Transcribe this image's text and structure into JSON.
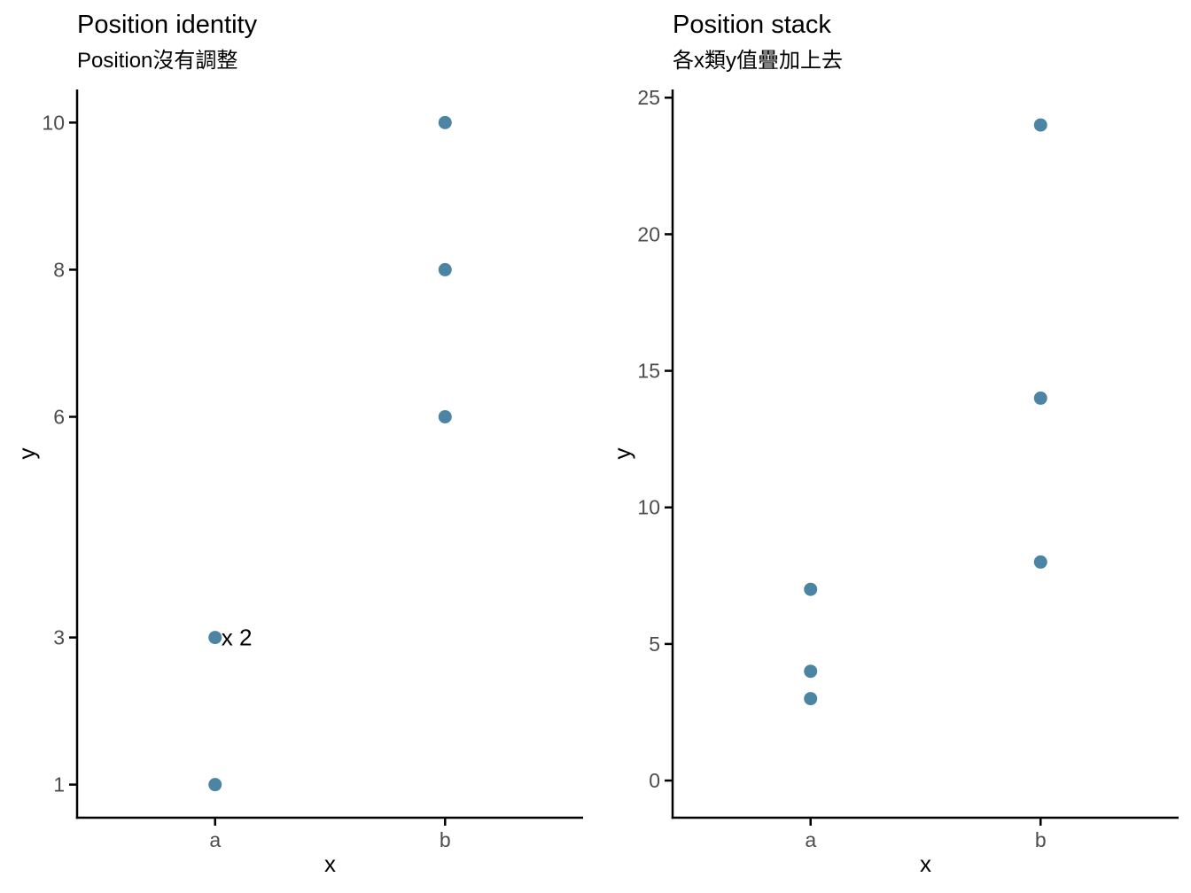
{
  "style": {
    "point_color": "#4C84A4",
    "axis_color": "#000000",
    "tick_label_color": "#4D4D4D",
    "title_color": "#000000"
  },
  "chart_data": [
    {
      "type": "scatter",
      "title": "Position identity",
      "subtitle": "Position沒有調整",
      "xlabel": "x",
      "ylabel": "y",
      "x_categories": [
        "a",
        "b"
      ],
      "y_ticks": [
        1,
        3,
        6,
        8,
        10
      ],
      "ylim": [
        0.55,
        10.45
      ],
      "grid": false,
      "legend": "none",
      "points": [
        {
          "x": "a",
          "y": 1
        },
        {
          "x": "a",
          "y": 3,
          "count": 2,
          "label": "x 2"
        },
        {
          "x": "b",
          "y": 6
        },
        {
          "x": "b",
          "y": 8
        },
        {
          "x": "b",
          "y": 10
        }
      ]
    },
    {
      "type": "scatter",
      "title": "Position stack",
      "subtitle": "各x類y值疊加上去",
      "xlabel": "x",
      "ylabel": "y",
      "x_categories": [
        "a",
        "b"
      ],
      "y_ticks": [
        0,
        5,
        10,
        15,
        20,
        25
      ],
      "ylim": [
        -1.36,
        25.3
      ],
      "grid": false,
      "legend": "none",
      "points": [
        {
          "x": "a",
          "y": 3
        },
        {
          "x": "a",
          "y": 4
        },
        {
          "x": "a",
          "y": 7
        },
        {
          "x": "b",
          "y": 8
        },
        {
          "x": "b",
          "y": 14
        },
        {
          "x": "b",
          "y": 24
        }
      ]
    }
  ]
}
